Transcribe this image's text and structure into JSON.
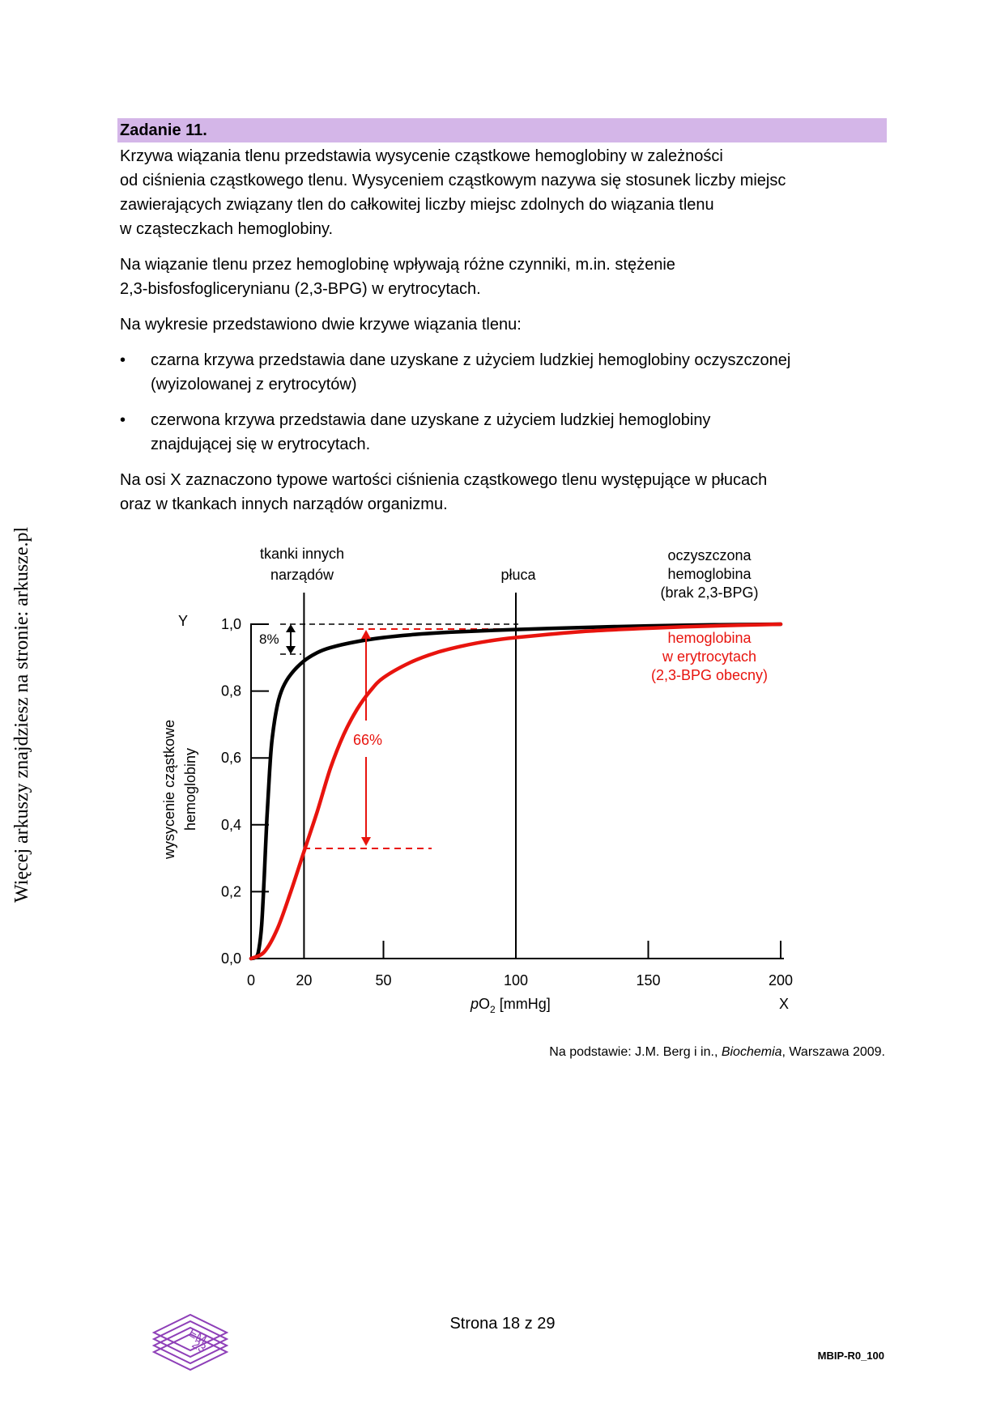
{
  "side_watermark": "Więcej arkuszy znajdziesz na stronie: arkusze.pl",
  "task": {
    "title": "Zadanie 11.",
    "intro_lines": [
      "Krzywa wiązania tlenu przedstawia wysycenie cząstkowe hemoglobiny w zależności",
      "od ciśnienia cząstkowego tlenu. Wysyceniem cząstkowym nazywa się stosunek liczby miejsc",
      "zawierających związany tlen do całkowitej liczby miejsc zdolnych do wiązania tlenu",
      "w cząsteczkach hemoglobiny."
    ],
    "factor_lines": [
      "Na wiązanie tlenu przez hemoglobinę wpływają różne czynniki, m.in. stężenie",
      "2,3-bisfosfoglicerynianu (2,3-BPG) w erytrocytach."
    ],
    "chart_intro": "Na wykresie przedstawiono dwie krzywe wiązania tlenu:",
    "bullets": [
      {
        "symbol": "•",
        "lines": [
          "czarna krzywa przedstawia dane uzyskane z użyciem ludzkiej hemoglobiny oczyszczonej",
          "(wyizolowanej z erytrocytów)"
        ]
      },
      {
        "symbol": "•",
        "lines": [
          "czerwona krzywa przedstawia dane uzyskane z użyciem ludzkiej hemoglobiny",
          "znajdującej się w erytrocytach."
        ]
      }
    ],
    "axis_note_lines": [
      "Na osi X zaznaczono typowe wartości ciśnienia cząstkowego tlenu występujące w płucach",
      "oraz w tkankach innych narządów organizmu."
    ]
  },
  "chart_data": {
    "type": "line",
    "x_axis": {
      "letter": "X",
      "label_prefix": "p",
      "label_main": "O",
      "label_sub": "2",
      "label_unit": " [mmHg]",
      "ticks": [
        "0",
        "20",
        "50",
        "100",
        "150",
        "200"
      ],
      "range": [
        0,
        200
      ]
    },
    "y_axis": {
      "letter": "Y",
      "label_lines": [
        "wysycenie cząstkowe",
        "hemoglobiny"
      ],
      "ticks": [
        "0,0",
        "0,2",
        "0,4",
        "0,6",
        "0,8",
        "1,0"
      ],
      "range": [
        0,
        1
      ]
    },
    "markers": [
      {
        "x": 20,
        "label_lines": [
          "tkanki innych",
          "narządów"
        ]
      },
      {
        "x": 100,
        "label_lines": [
          "płuca"
        ]
      }
    ],
    "series": [
      {
        "name_lines": [
          "oczyszczona",
          "hemoglobina",
          "(brak 2,3-BPG)"
        ],
        "color": "#000000",
        "points": [
          [
            0,
            0
          ],
          [
            2,
            0.005
          ],
          [
            3,
            0.03
          ],
          [
            4,
            0.1
          ],
          [
            5,
            0.25
          ],
          [
            6,
            0.42
          ],
          [
            7,
            0.56
          ],
          [
            8,
            0.66
          ],
          [
            10,
            0.76
          ],
          [
            12,
            0.81
          ],
          [
            15,
            0.85
          ],
          [
            20,
            0.89
          ],
          [
            25,
            0.915
          ],
          [
            30,
            0.93
          ],
          [
            40,
            0.948
          ],
          [
            50,
            0.96
          ],
          [
            60,
            0.968
          ],
          [
            75,
            0.976
          ],
          [
            100,
            0.984
          ],
          [
            125,
            0.99
          ],
          [
            150,
            0.995
          ],
          [
            175,
            0.998
          ],
          [
            200,
            1.0
          ]
        ]
      },
      {
        "name_lines": [
          "hemoglobina",
          "w erytrocytach",
          "(2,3-BPG obecny)"
        ],
        "color": "#e8140e",
        "points": [
          [
            0,
            0
          ],
          [
            5,
            0.02
          ],
          [
            10,
            0.09
          ],
          [
            15,
            0.2
          ],
          [
            20,
            0.32
          ],
          [
            25,
            0.44
          ],
          [
            30,
            0.57
          ],
          [
            35,
            0.67
          ],
          [
            40,
            0.745
          ],
          [
            45,
            0.8
          ],
          [
            50,
            0.84
          ],
          [
            60,
            0.885
          ],
          [
            70,
            0.915
          ],
          [
            80,
            0.935
          ],
          [
            90,
            0.95
          ],
          [
            100,
            0.96
          ],
          [
            125,
            0.978
          ],
          [
            150,
            0.988
          ],
          [
            175,
            0.995
          ],
          [
            200,
            1.0
          ]
        ]
      }
    ],
    "annotations": [
      {
        "text": "8%",
        "color": "#000000"
      },
      {
        "text": "66%",
        "color": "#e8140e"
      }
    ]
  },
  "source_note": {
    "prefix": "Na podstawie: J.M. Berg i in., ",
    "title": "Biochemia",
    "suffix": ", Warszawa 2009."
  },
  "footer": {
    "page_label": "Strona 18 z 29",
    "doc_code": "MBIP-R0_100",
    "logo_text": [
      "EM",
      "23"
    ],
    "logo_color": "#8e3fb8"
  }
}
